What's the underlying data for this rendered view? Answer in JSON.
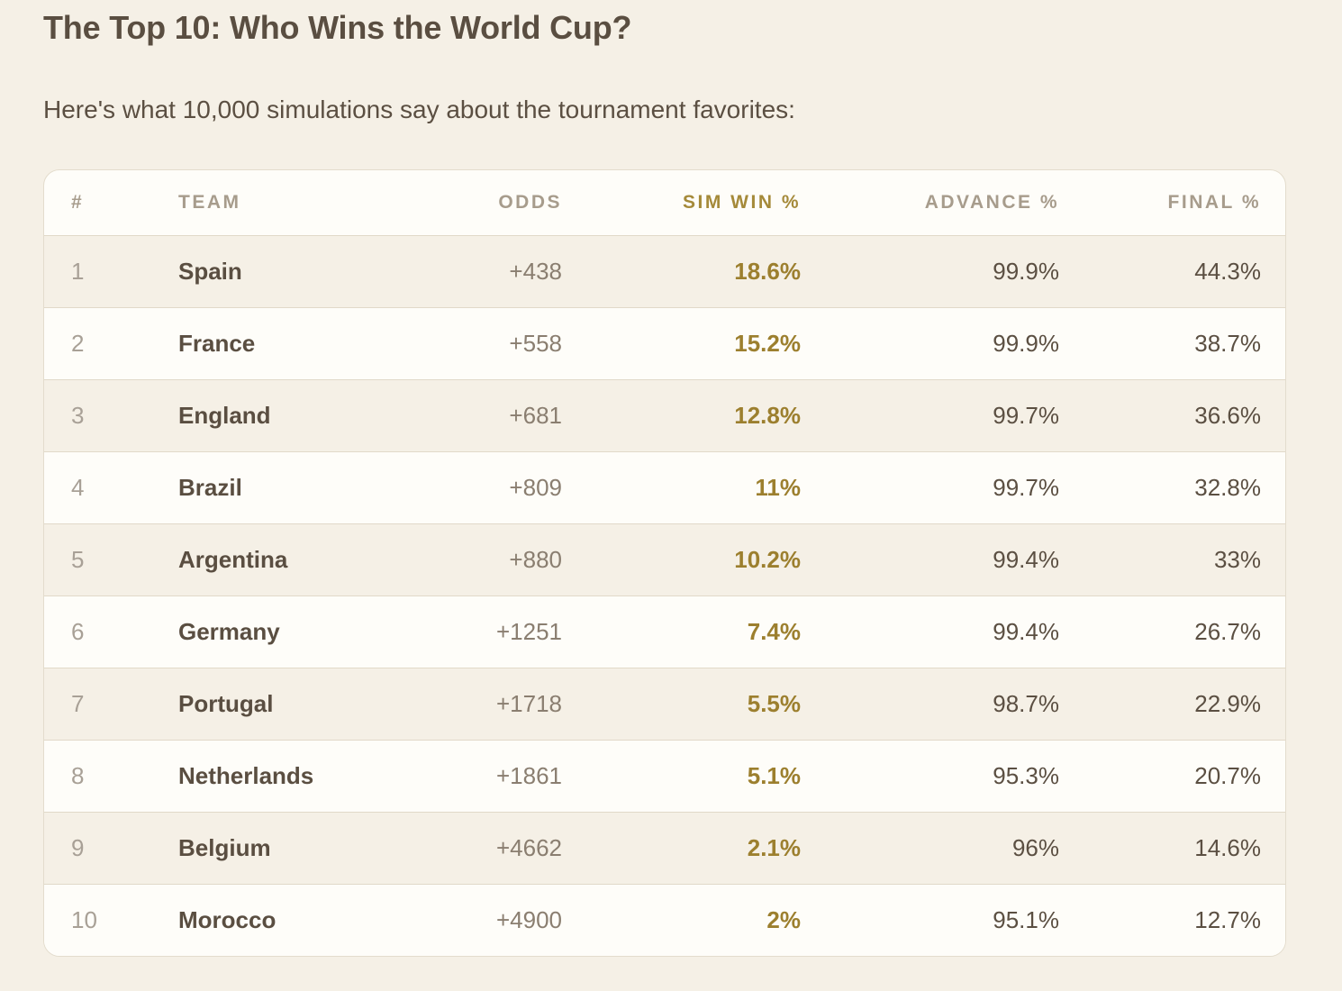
{
  "title": "The Top 10: Who Wins the World Cup?",
  "intro": "Here's what 10,000 simulations say about the tournament favorites:",
  "colors": {
    "background": "#f5f0e6",
    "accent_gold": "#9c7f2e",
    "text": "#5b4f42"
  },
  "table": {
    "headers": {
      "rank": "#",
      "team": "TEAM",
      "odds": "ODDS",
      "sim_win": "SIM WIN %",
      "advance": "ADVANCE %",
      "final": "FINAL %"
    },
    "rows": [
      {
        "rank": "1",
        "team": "Spain",
        "odds": "+438",
        "sim_win": "18.6%",
        "advance": "99.9%",
        "final": "44.3%"
      },
      {
        "rank": "2",
        "team": "France",
        "odds": "+558",
        "sim_win": "15.2%",
        "advance": "99.9%",
        "final": "38.7%"
      },
      {
        "rank": "3",
        "team": "England",
        "odds": "+681",
        "sim_win": "12.8%",
        "advance": "99.7%",
        "final": "36.6%"
      },
      {
        "rank": "4",
        "team": "Brazil",
        "odds": "+809",
        "sim_win": "11%",
        "advance": "99.7%",
        "final": "32.8%"
      },
      {
        "rank": "5",
        "team": "Argentina",
        "odds": "+880",
        "sim_win": "10.2%",
        "advance": "99.4%",
        "final": "33%"
      },
      {
        "rank": "6",
        "team": "Germany",
        "odds": "+1251",
        "sim_win": "7.4%",
        "advance": "99.4%",
        "final": "26.7%"
      },
      {
        "rank": "7",
        "team": "Portugal",
        "odds": "+1718",
        "sim_win": "5.5%",
        "advance": "98.7%",
        "final": "22.9%"
      },
      {
        "rank": "8",
        "team": "Netherlands",
        "odds": "+1861",
        "sim_win": "5.1%",
        "advance": "95.3%",
        "final": "20.7%"
      },
      {
        "rank": "9",
        "team": "Belgium",
        "odds": "+4662",
        "sim_win": "2.1%",
        "advance": "96%",
        "final": "14.6%"
      },
      {
        "rank": "10",
        "team": "Morocco",
        "odds": "+4900",
        "sim_win": "2%",
        "advance": "95.1%",
        "final": "12.7%"
      }
    ]
  }
}
